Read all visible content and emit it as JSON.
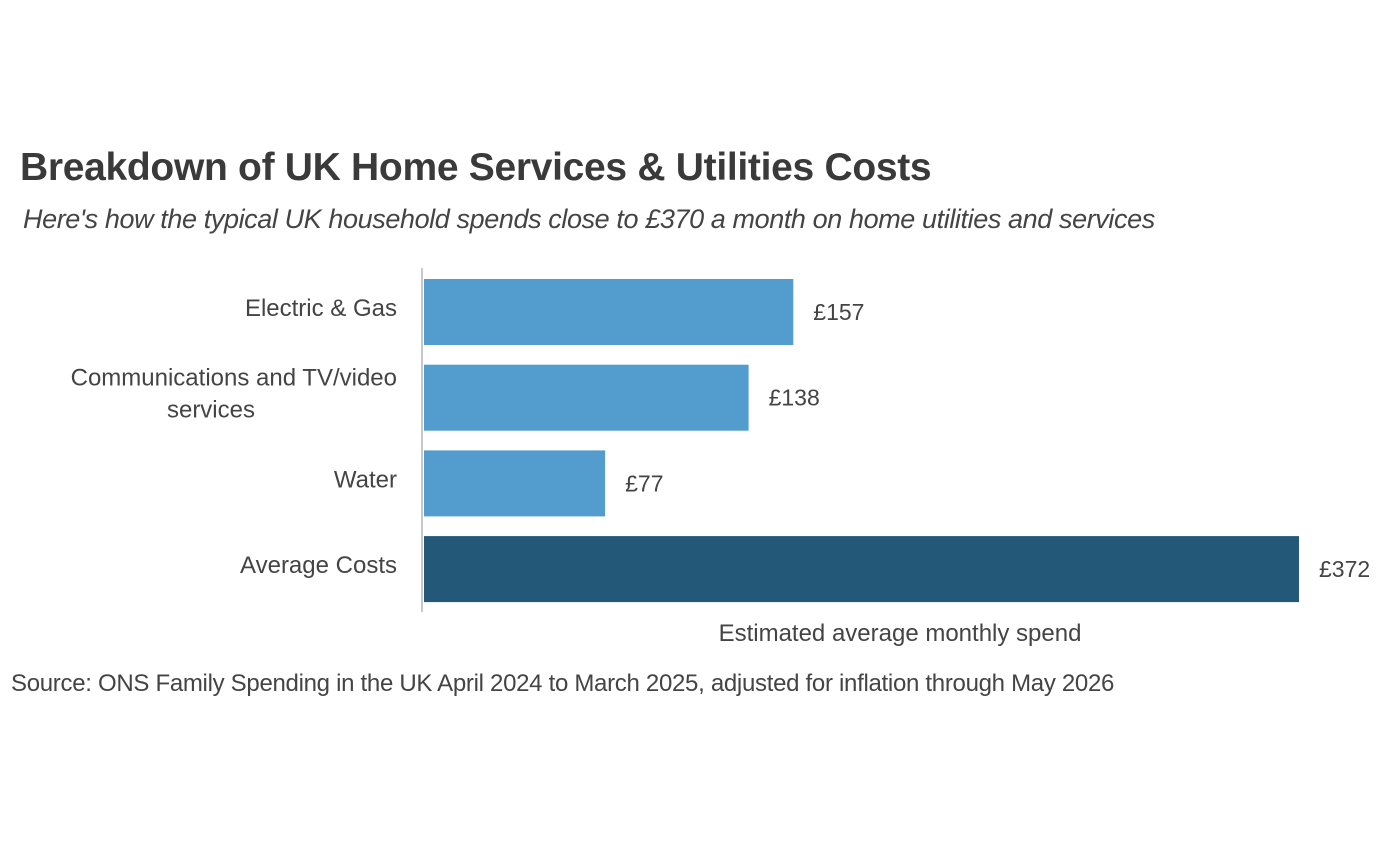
{
  "chart_data": {
    "type": "bar",
    "orientation": "horizontal",
    "title": "Breakdown of UK Home Services & Utilities Costs",
    "subtitle": "Here's how the typical UK household spends close to £370 a month on home utilities and services",
    "categories": [
      {
        "lines": [
          "Electric & Gas"
        ]
      },
      {
        "lines": [
          "Communications and TV/video",
          "services"
        ]
      },
      {
        "lines": [
          "Water"
        ]
      },
      {
        "lines": [
          "Average Costs"
        ]
      }
    ],
    "values": [
      157,
      138,
      77,
      372
    ],
    "value_labels": [
      "£157",
      "£138",
      "£77",
      "£372"
    ],
    "colors": [
      "#529dcd",
      "#529dcd",
      "#529dcd",
      "#245878"
    ],
    "xlabel": "Estimated average monthly spend",
    "ylabel": "",
    "xlim": [
      0,
      372
    ],
    "grid": false,
    "legend": "none",
    "source": "Source: ONS Family Spending in the UK April 2024 to March 2025, adjusted for inflation through May 2026"
  }
}
